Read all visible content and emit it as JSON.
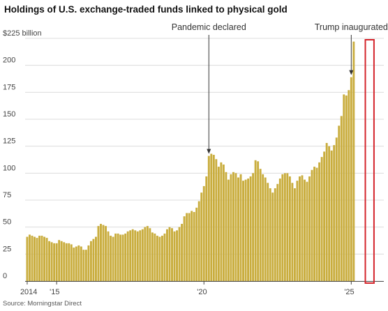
{
  "chart_data": {
    "type": "bar",
    "title": "Holdings of U.S. exchange-traded funds linked to physical gold",
    "source": "Source: Morningstar Direct",
    "y_axis": {
      "ticks": [
        0,
        25,
        50,
        75,
        100,
        125,
        150,
        175,
        200,
        225
      ],
      "tick_labels": [
        "0",
        "25",
        "50",
        "75",
        "100",
        "125",
        "150",
        "175",
        "200",
        "$225 billion"
      ],
      "ylim": [
        0,
        225
      ]
    },
    "x_axis": {
      "ticks": [
        {
          "label": "2014",
          "year": 2014
        },
        {
          "label": "'15",
          "year": 2015
        },
        {
          "label": "'20",
          "year": 2020
        },
        {
          "label": "'25",
          "year": 2025
        }
      ]
    },
    "grid": "horizontal",
    "bar_color": "#c9ad3e",
    "highlight_color": "#d4242b",
    "annotations": [
      {
        "label": "Pandemic declared",
        "month": "2020-03"
      },
      {
        "label": "Trump inaugurated",
        "month": "2025-01"
      }
    ],
    "highlight": {
      "from": "2025-08",
      "to": "2025-09"
    },
    "series": [
      {
        "start": "2014-01",
        "values": [
          41,
          43,
          42,
          41,
          40,
          42,
          42,
          41,
          40,
          37,
          36,
          35,
          35,
          38,
          37,
          36,
          35,
          35,
          34,
          31,
          32,
          33,
          32,
          29,
          29,
          33,
          37,
          39,
          41,
          51,
          53,
          52,
          51,
          46,
          42,
          41,
          44,
          44,
          43,
          43,
          44,
          46,
          47,
          48,
          47,
          46,
          47,
          48,
          50,
          51,
          49,
          45,
          44,
          42,
          41,
          42,
          44,
          48,
          50,
          49,
          46,
          47,
          50,
          53,
          60,
          63,
          63,
          65,
          64,
          68,
          74,
          82,
          88,
          97,
          116,
          118,
          117,
          113,
          106,
          110,
          108,
          101,
          94,
          99,
          101,
          100,
          96,
          99,
          93,
          94,
          95,
          97,
          100,
          112,
          111,
          104,
          99,
          96,
          91,
          86,
          82,
          86,
          90,
          95,
          99,
          100,
          100,
          97,
          91,
          86,
          93,
          97,
          98,
          94,
          92,
          97,
          103,
          106,
          105,
          110,
          115,
          120,
          128,
          125,
          121,
          126,
          133,
          144,
          153,
          173,
          172,
          177,
          189,
          222
        ]
      }
    ]
  }
}
